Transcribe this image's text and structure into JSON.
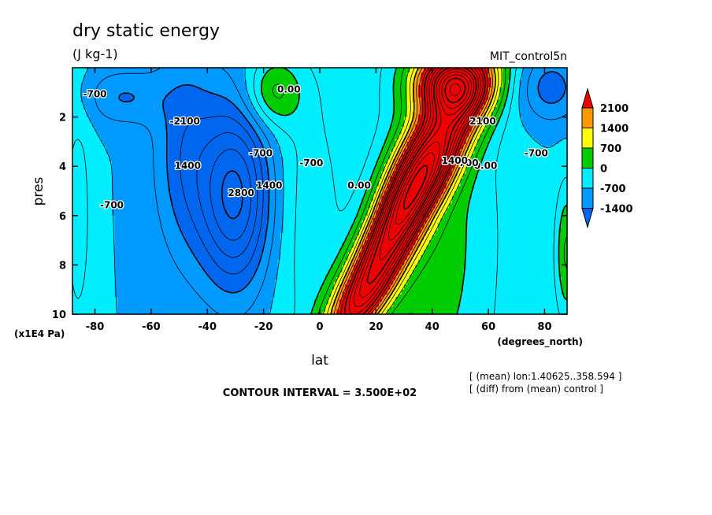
{
  "chart_data": {
    "type": "heatmap",
    "title": "dry static energy",
    "subtitle": "(J kg-1)",
    "run_name": "MIT_control5n",
    "xlabel": "lat",
    "xunits": "(degrees_north)",
    "ylabel": "pres",
    "yunits": "(x1E4 Pa)",
    "xlim": [
      -88,
      88
    ],
    "ylim": [
      10,
      0
    ],
    "x_ticks": [
      "-80",
      "-60",
      "-40",
      "-20",
      "0",
      "20",
      "40",
      "60",
      "80"
    ],
    "x_tick_values": [
      -80,
      -60,
      -40,
      -20,
      0,
      20,
      40,
      60,
      80
    ],
    "y_ticks": [
      "2",
      "4",
      "6",
      "8",
      "10"
    ],
    "y_tick_values": [
      2,
      4,
      6,
      8,
      10
    ],
    "colorbar": {
      "labels": [
        "2100",
        "1400",
        "700",
        "0",
        "-700",
        "-1400"
      ],
      "bins": [
        {
          "min": 2100,
          "max": 99999,
          "color": "#ee0000"
        },
        {
          "min": 1400,
          "max": 2100,
          "color": "#ff9900"
        },
        {
          "min": 700,
          "max": 1400,
          "color": "#ffff00"
        },
        {
          "min": 0,
          "max": 700,
          "color": "#00cc00"
        },
        {
          "min": -700,
          "max": 0,
          "color": "#00eeff"
        },
        {
          "min": -1400,
          "max": -700,
          "color": "#0099ff"
        },
        {
          "min": -99999,
          "max": -1400,
          "color": "#0066ee"
        }
      ]
    },
    "field_description": "zonal-mean difference field shaded on a lat-pressure grid",
    "regions": [
      {
        "kind": "high",
        "lat": 37,
        "pres": 4.8,
        "value": 5200,
        "width_lat": 7,
        "width_pres": 2.8
      },
      {
        "kind": "high",
        "lat": 44,
        "pres": 0.8,
        "value": 4000,
        "width_lat": 9,
        "width_pres": 1.2
      },
      {
        "kind": "low",
        "lat": -30,
        "pres": 5.2,
        "value": -2900,
        "width_lat": 9,
        "width_pres": 2.6
      },
      {
        "kind": "low",
        "lat": -48,
        "pres": 3.5,
        "value": -1500,
        "width_lat": 8,
        "width_pres": 3.0
      }
    ],
    "contour_labels": [
      {
        "text": "-700",
        "lat": -80,
        "pres": 1.2
      },
      {
        "text": "0.00",
        "lat": -11,
        "pres": 1.0
      },
      {
        "text": "-2100",
        "lat": -48,
        "pres": 2.3
      },
      {
        "text": "-700",
        "lat": -21,
        "pres": 3.6
      },
      {
        "text": "-700",
        "lat": -3,
        "pres": 4.0
      },
      {
        "text": "1400",
        "lat": -47,
        "pres": 4.1
      },
      {
        "text": "2800",
        "lat": -28,
        "pres": 5.2
      },
      {
        "text": "1400",
        "lat": -18,
        "pres": 4.9
      },
      {
        "text": "-700",
        "lat": -74,
        "pres": 5.7
      },
      {
        "text": "0.00",
        "lat": 14,
        "pres": 4.9
      },
      {
        "text": "0.00",
        "lat": 59,
        "pres": 4.1
      },
      {
        "text": "700",
        "lat": 53,
        "pres": 4.0
      },
      {
        "text": "1400",
        "lat": 48,
        "pres": 3.9
      },
      {
        "text": "-700",
        "lat": 77,
        "pres": 3.6
      },
      {
        "text": "2100",
        "lat": 58,
        "pres": 2.3
      }
    ],
    "contour_interval": "CONTOUR INTERVAL = 3.500E+02"
  },
  "notes": [
    "[ (mean) lon:1.40625..358.594 ]",
    "[ (diff) from (mean) control ]"
  ]
}
